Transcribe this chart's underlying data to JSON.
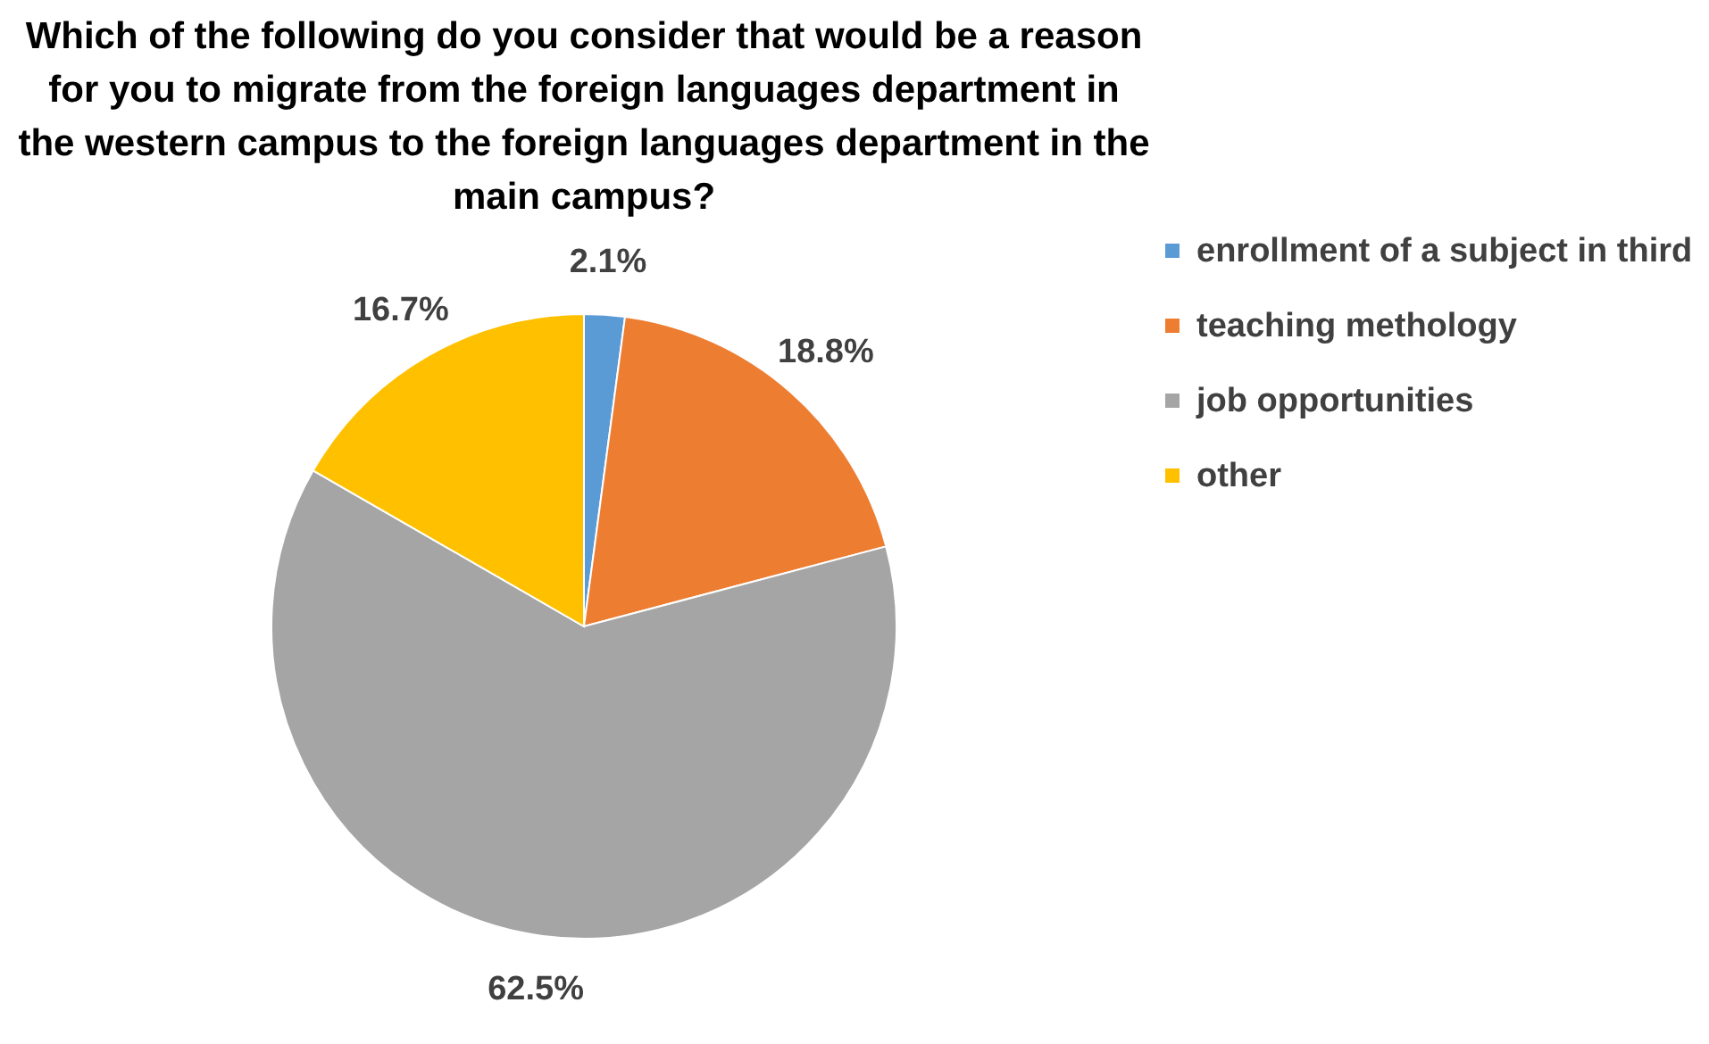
{
  "chart_data": {
    "type": "pie",
    "title": "Which of the following do you consider that would be a reason for you to migrate from the foreign languages department in the western campus to the foreign languages department in the main campus?",
    "categories": [
      "enrollment of a subject in third",
      "teaching methology",
      "job opportunities",
      "other"
    ],
    "values": [
      2.1,
      18.8,
      62.5,
      16.7
    ],
    "value_labels": [
      "2.1%",
      "18.8%",
      "62.5%",
      "16.7%"
    ],
    "colors": [
      "#5b9bd5",
      "#ed7d31",
      "#a5a5a5",
      "#ffc000"
    ],
    "legend": "right"
  }
}
